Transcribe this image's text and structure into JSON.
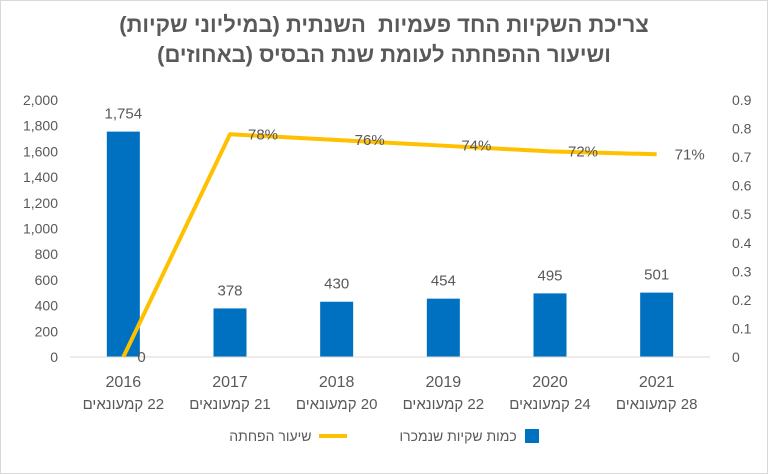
{
  "title_lines": [
    "צריכת השקיות החד פעמיות  השנתית (במיליוני שקיות)",
    "ושיעור ההפחתה לעומת שנת הבסיס (באחוזים)"
  ],
  "colors": {
    "bars": "#0070c0",
    "line": "#ffc000",
    "text": "#595959",
    "grid": "#d9d9d9"
  },
  "chart_data": {
    "type": "bar+line",
    "categories": [
      [
        "2016",
        "22 קמעונאים"
      ],
      [
        "2017",
        "21 קמעונאים"
      ],
      [
        "2018",
        "20 קמעונאים"
      ],
      [
        "2019",
        "22 קמעונאים"
      ],
      [
        "2020",
        "24 קמעונאים"
      ],
      [
        "2021",
        "28 קמעונאים"
      ]
    ],
    "series": [
      {
        "name": "כמות שקיות שנמכרו",
        "type": "bar",
        "axis": "left",
        "values": [
          1754,
          378,
          430,
          454,
          495,
          501
        ],
        "labels": [
          "1,754",
          "378",
          "430",
          "454",
          "495",
          "501"
        ]
      },
      {
        "name": "שיעור הפחתה",
        "type": "line",
        "axis": "right",
        "values": [
          0,
          0.78,
          0.76,
          0.74,
          0.72,
          0.71
        ],
        "labels": [
          "0",
          "78%",
          "76%",
          "74%",
          "72%",
          "71%"
        ]
      }
    ],
    "y_left": {
      "ylim": [
        0,
        2000
      ],
      "ticks": [
        0,
        200,
        400,
        600,
        800,
        1000,
        1200,
        1400,
        1600,
        1800,
        2000
      ],
      "tick_labels": [
        "0",
        "200",
        "400",
        "600",
        "800",
        "1,000",
        "1,200",
        "1,400",
        "1,600",
        "1,800",
        "2,000"
      ]
    },
    "y_right": {
      "ylim": [
        0,
        0.9
      ],
      "ticks": [
        0,
        0.1,
        0.2,
        0.3,
        0.4,
        0.5,
        0.6,
        0.7,
        0.8,
        0.9
      ],
      "tick_labels": [
        "0",
        "0.1",
        "0.2",
        "0.3",
        "0.4",
        "0.5",
        "0.6",
        "0.7",
        "0.8",
        "0.9"
      ]
    },
    "grid": false,
    "legend_position": "bottom"
  }
}
